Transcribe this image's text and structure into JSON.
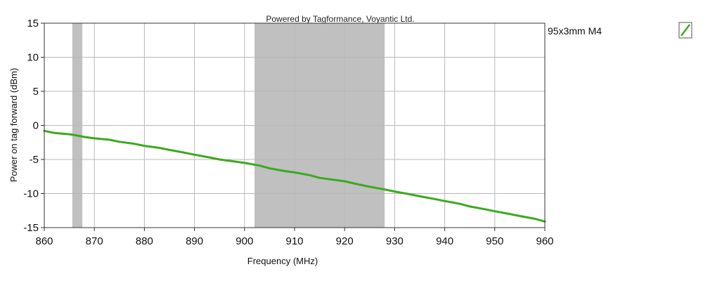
{
  "chart_data": {
    "type": "line",
    "caption": "Powered by Tagformance, Voyantic Ltd.",
    "xlabel": "Frequency (MHz)",
    "ylabel": "Power on tag forward (dBm)",
    "xlim": [
      860,
      960
    ],
    "ylim": [
      -15,
      15
    ],
    "x_ticks": [
      860,
      870,
      880,
      890,
      900,
      910,
      920,
      930,
      940,
      950,
      960
    ],
    "y_ticks": [
      15,
      10,
      5,
      0,
      -5,
      -10,
      -15
    ],
    "grid": true,
    "legend_placement": "top-right",
    "shaded_bands": [
      {
        "x_start": 865.6,
        "x_end": 867.6
      },
      {
        "x_start": 902,
        "x_end": 928
      }
    ],
    "series": [
      {
        "name": "95x3mm M4",
        "color": "#3aaa1e",
        "x": [
          860,
          862,
          865,
          866,
          868,
          870,
          873,
          875,
          878,
          880,
          883,
          885,
          888,
          890,
          893,
          895,
          898,
          900,
          903,
          905,
          908,
          910,
          913,
          915,
          918,
          920,
          923,
          925,
          928,
          930,
          933,
          935,
          938,
          940,
          943,
          945,
          948,
          950,
          953,
          955,
          958,
          960
        ],
        "y": [
          -0.8,
          -1.1,
          -1.3,
          -1.4,
          -1.7,
          -1.9,
          -2.1,
          -2.4,
          -2.7,
          -3.0,
          -3.3,
          -3.6,
          -4.0,
          -4.3,
          -4.7,
          -5.0,
          -5.3,
          -5.5,
          -5.9,
          -6.3,
          -6.7,
          -6.9,
          -7.3,
          -7.7,
          -8.0,
          -8.2,
          -8.7,
          -9.0,
          -9.4,
          -9.7,
          -10.1,
          -10.4,
          -10.8,
          -11.1,
          -11.5,
          -11.9,
          -12.3,
          -12.6,
          -13.0,
          -13.3,
          -13.7,
          -14.1
        ]
      }
    ]
  }
}
